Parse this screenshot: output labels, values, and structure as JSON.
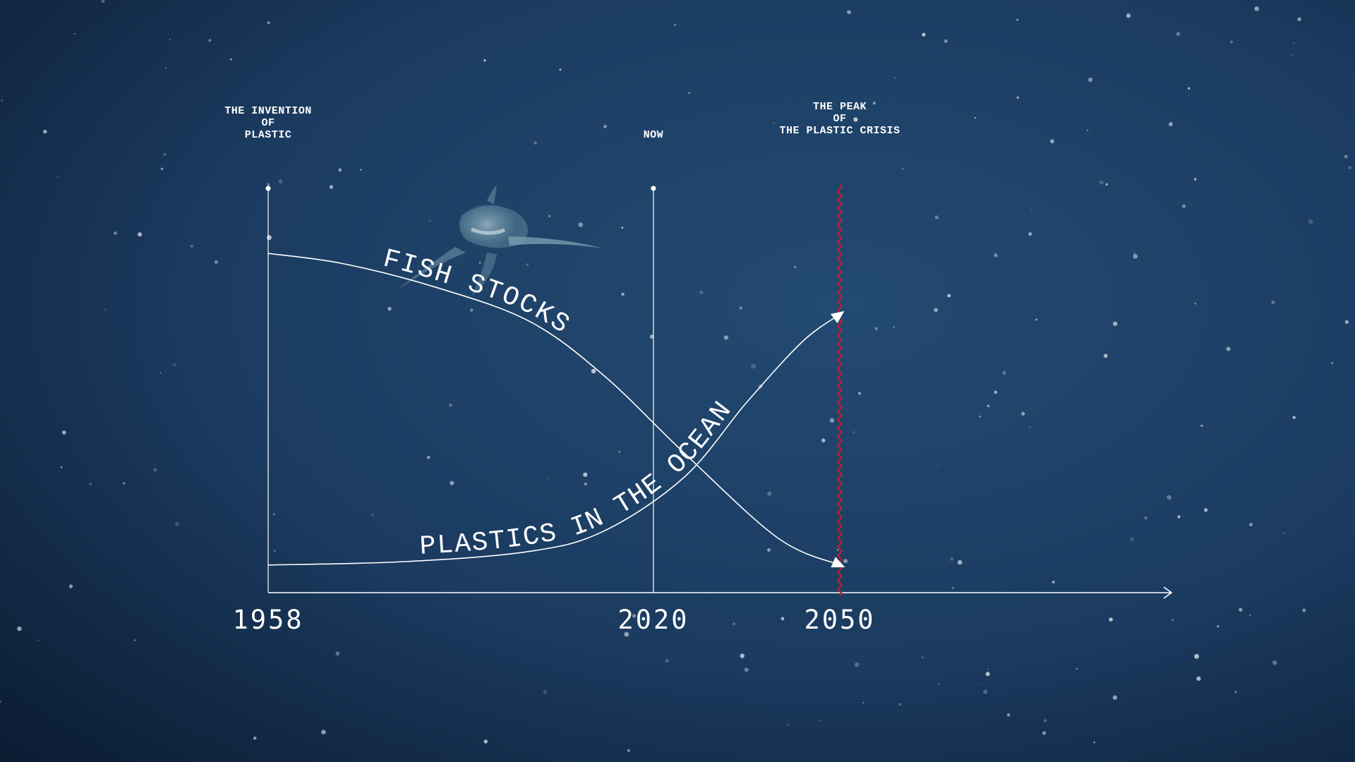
{
  "colors": {
    "ocean_deep": "#0b1c33",
    "ocean_mid": "#1b3b60",
    "line": "#ffffff",
    "peak_line": "#c01f2a"
  },
  "chart_data": {
    "type": "line",
    "x_axis": {
      "tick_labels": [
        "1958",
        "2020",
        "2050"
      ],
      "range": [
        1958,
        2071
      ],
      "arrow": true
    },
    "markers": [
      {
        "x": 1958,
        "label_lines": [
          "THE INVENTION",
          "OF",
          "PLASTIC"
        ]
      },
      {
        "x": 2020,
        "label_lines": [
          "NOW"
        ]
      },
      {
        "x": 2050,
        "label_lines": [
          "THE PEAK",
          "OF",
          "THE PLASTIC CRISIS"
        ],
        "style": "wavy-red"
      }
    ],
    "series": [
      {
        "name": "FISH STOCKS",
        "trend": "decreasing",
        "x": [
          1958,
          1970,
          1985,
          2000,
          2012,
          2025,
          2040,
          2050
        ],
        "y": [
          0.96,
          0.93,
          0.86,
          0.76,
          0.6,
          0.37,
          0.12,
          0.04
        ]
      },
      {
        "name": "PLASTICS IN THE OCEAN",
        "trend": "increasing",
        "x": [
          1958,
          1980,
          2000,
          2012,
          2025,
          2035,
          2044,
          2050
        ],
        "y": [
          0.04,
          0.05,
          0.08,
          0.14,
          0.3,
          0.52,
          0.7,
          0.78
        ]
      }
    ],
    "grid": false,
    "legend": "none"
  }
}
